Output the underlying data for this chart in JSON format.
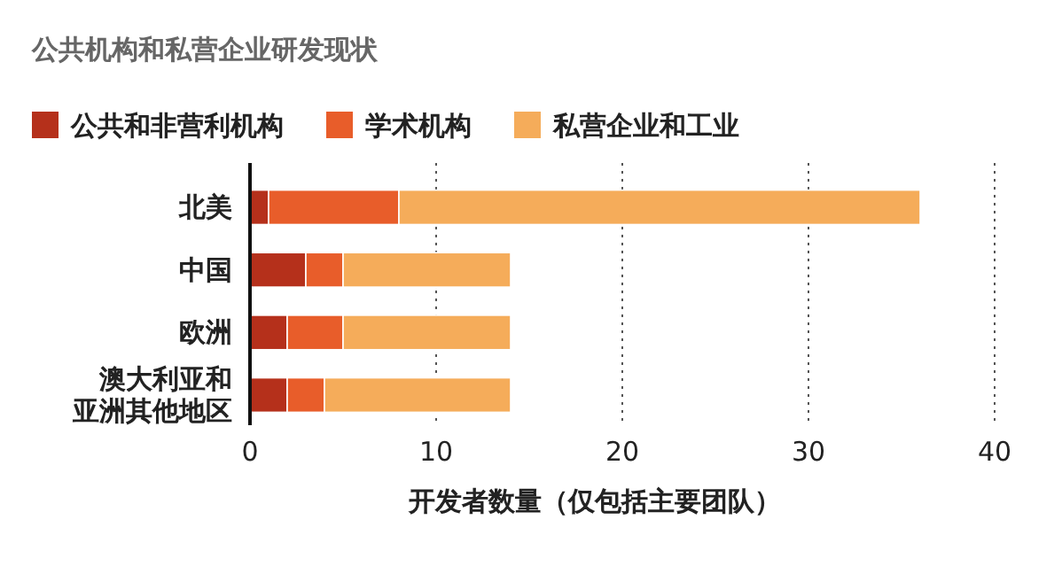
{
  "chart_data": {
    "type": "bar",
    "orientation": "horizontal",
    "stacked": true,
    "title": "公共机构和私营企业研发现状",
    "xlabel": "开发者数量（仅包括主要团队）",
    "categories": [
      "北美",
      "中国",
      "欧洲",
      "澳大利亚和亚洲其他地区"
    ],
    "series": [
      {
        "name": "公共和非营利机构",
        "color": "#b5301b",
        "values": [
          1,
          3,
          2,
          2
        ]
      },
      {
        "name": "学术机构",
        "color": "#e85d2a",
        "values": [
          7,
          2,
          3,
          2
        ]
      },
      {
        "name": "私营企业和工业",
        "color": "#f5ac5a",
        "values": [
          28,
          9,
          9,
          10
        ]
      }
    ],
    "xlim": [
      0,
      40
    ],
    "xticks": [
      0,
      10,
      20,
      30,
      40
    ],
    "grid": "x",
    "legend": "top left"
  }
}
